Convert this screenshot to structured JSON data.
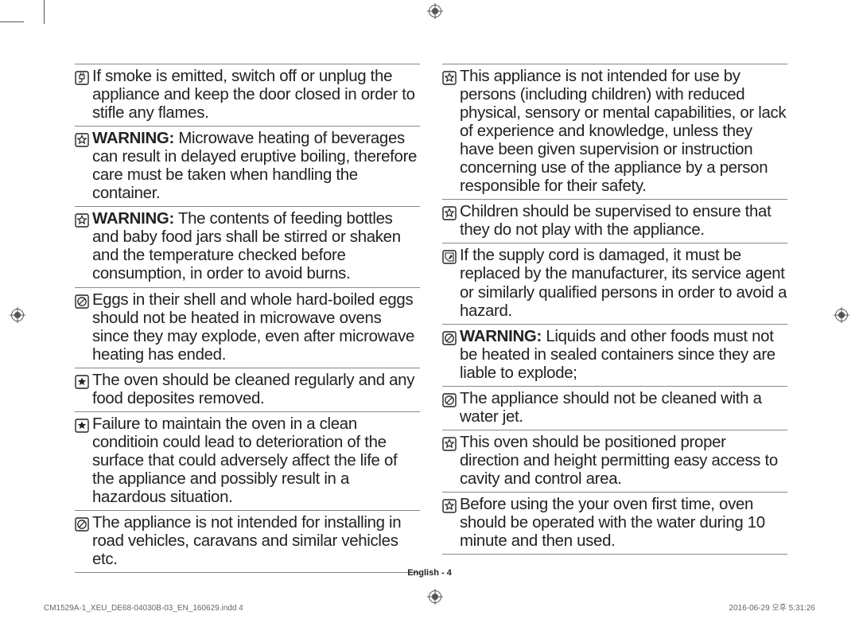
{
  "page_label": "English - 4",
  "footer_left": "CM1529A-1_XEU_DE68-04030B-03_EN_160629.indd   4",
  "footer_right": "2016-06-29   오후 5:31:26",
  "icons": {
    "plug": "plug-icon",
    "star": "star-icon",
    "no": "prohibit-icon",
    "star_solid": "star-solid-icon",
    "note": "note-icon"
  },
  "columns": {
    "left": [
      {
        "icon": "plug",
        "text": "If smoke is emitted, switch off or unplug the appliance and keep the door closed in order to stifle any flames."
      },
      {
        "icon": "star",
        "text": "<b>WARNING:</b> Microwave heating of beverages can result in delayed eruptive boiling, therefore care must be taken when handling the container."
      },
      {
        "icon": "star",
        "text": "<b>WARNING:</b> The contents of feeding bottles and baby food jars shall be stirred or shaken and the temperature checked before consumption, in order to avoid burns."
      },
      {
        "icon": "no",
        "text": "Eggs in their shell and whole hard-boiled eggs should not be heated in microwave ovens since they may explode, even after microwave heating has ended."
      },
      {
        "icon": "star_solid",
        "text": "The oven should be cleaned regularly and any food deposites removed."
      },
      {
        "icon": "star_solid",
        "text": "Failure to maintain the oven in a clean conditioin could lead to deterioration of the surface that could adversely affect the life of the appliance and possibly result in a hazardous situation."
      },
      {
        "icon": "no",
        "text": "The appliance is not intended for installing in road vehicles, caravans and similar vehicles etc."
      }
    ],
    "right": [
      {
        "icon": "star",
        "text": "This appliance is not intended for use by persons (including children) with reduced physical, sensory or mental capabilities, or lack of experience and knowledge, unless they have been given supervision or instruction concerning use of the appliance by a person responsible for their safety."
      },
      {
        "icon": "star",
        "text": "Children should be supervised to ensure that they do not play with the appliance."
      },
      {
        "icon": "note",
        "text": "If the supply cord is damaged, it must be replaced by the manufacturer, its service agent or similarly qualified persons in order to avoid a hazard."
      },
      {
        "icon": "no",
        "text": "<b>WARNING:</b> Liquids and other foods must not be heated in sealed containers since they are liable to explode;"
      },
      {
        "icon": "no",
        "text": "The appliance should not be cleaned with a water jet."
      },
      {
        "icon": "star",
        "text": "This oven should be positioned proper direction and height permitting easy access to cavity and control area."
      },
      {
        "icon": "star",
        "text": "Before using the your oven first time, oven should be operated with the water during 10 minute and then used."
      }
    ]
  }
}
